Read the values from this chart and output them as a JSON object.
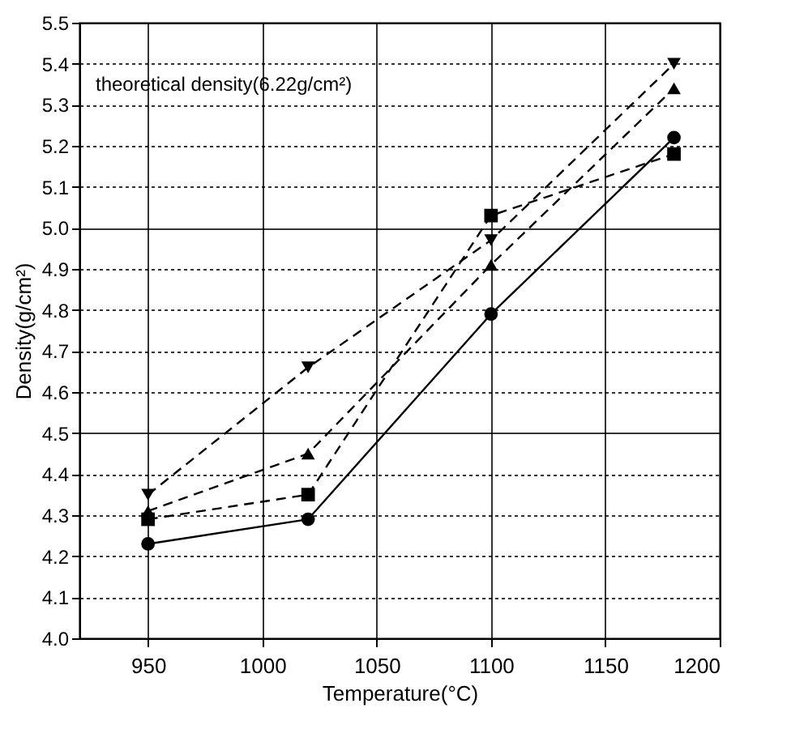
{
  "chart_data": {
    "type": "line",
    "xlabel": "Temperature(°C)",
    "ylabel": "Density(g/cm²)",
    "annotations": [
      "theoretical density(6.22g/cm²)"
    ],
    "x": [
      950,
      1020,
      1100,
      1180
    ],
    "series": [
      {
        "color": "#000000",
        "marker": "circle",
        "line_style": "solid",
        "values": [
          4.23,
          4.29,
          4.79,
          5.22
        ]
      },
      {
        "color": "#000000",
        "marker": "square",
        "line_style": "dashed",
        "values": [
          4.29,
          4.35,
          5.03,
          5.18
        ]
      },
      {
        "color": "#000000",
        "marker": "triangle",
        "line_style": "dashed",
        "values": [
          4.31,
          4.45,
          4.91,
          5.34
        ]
      },
      {
        "color": "#000000",
        "marker": "triangle-down",
        "line_style": "dashed",
        "values": [
          4.35,
          4.66,
          4.97,
          5.4
        ]
      }
    ],
    "xlim": [
      920,
      1200
    ],
    "xticks": [
      950,
      1000,
      1050,
      1100,
      1150,
      1200
    ],
    "ylim": [
      4.0,
      5.5
    ],
    "yticks": [
      {
        "value": 4,
        "label": "4.0"
      },
      4.1,
      4.2,
      4.3,
      4.4,
      4.5,
      4.6,
      4.7,
      4.8,
      4.9,
      {
        "value": 5,
        "label": "5.0"
      },
      5.1,
      5.2,
      5.3,
      5.4,
      5.5
    ],
    "grid": true
  }
}
